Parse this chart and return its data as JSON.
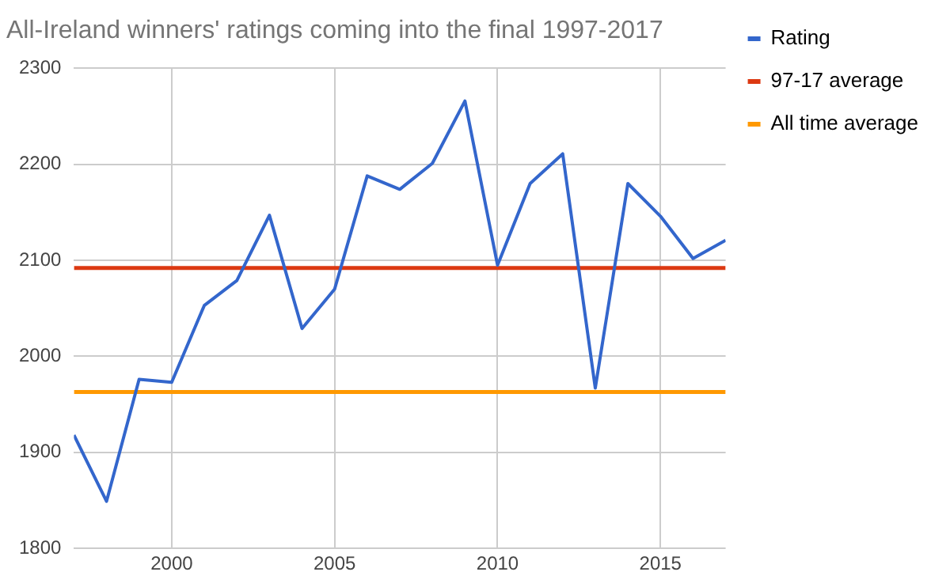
{
  "chart_data": {
    "type": "line",
    "title": "All-Ireland winners' ratings coming into the final 1997-2017",
    "x": [
      1997,
      1998,
      1999,
      2000,
      2001,
      2002,
      2003,
      2004,
      2005,
      2006,
      2007,
      2008,
      2009,
      2010,
      2011,
      2012,
      2013,
      2014,
      2015,
      2016,
      2017
    ],
    "series": [
      {
        "name": "Rating",
        "color": "#3366cc",
        "values": [
          1918,
          1849,
          1976,
          1973,
          2053,
          2079,
          2147,
          2029,
          2070,
          2188,
          2174,
          2201,
          2266,
          2095,
          2180,
          2211,
          1967,
          2180,
          2146,
          2102,
          2121
        ]
      }
    ],
    "ref_lines": [
      {
        "axis": "y",
        "value": 2092,
        "label": "97-17 average",
        "color": "#dc3912"
      },
      {
        "axis": "y",
        "value": 1963,
        "label": "All time average",
        "color": "#ff9900"
      }
    ],
    "xlim": [
      1997,
      2017
    ],
    "xticks": [
      2000,
      2005,
      2010,
      2015
    ],
    "ylim": [
      1800,
      2300
    ],
    "yticks": [
      1800,
      1900,
      2000,
      2100,
      2200,
      2300
    ],
    "grid": true,
    "legend": "right",
    "marker": "none",
    "line_style": "solid"
  }
}
